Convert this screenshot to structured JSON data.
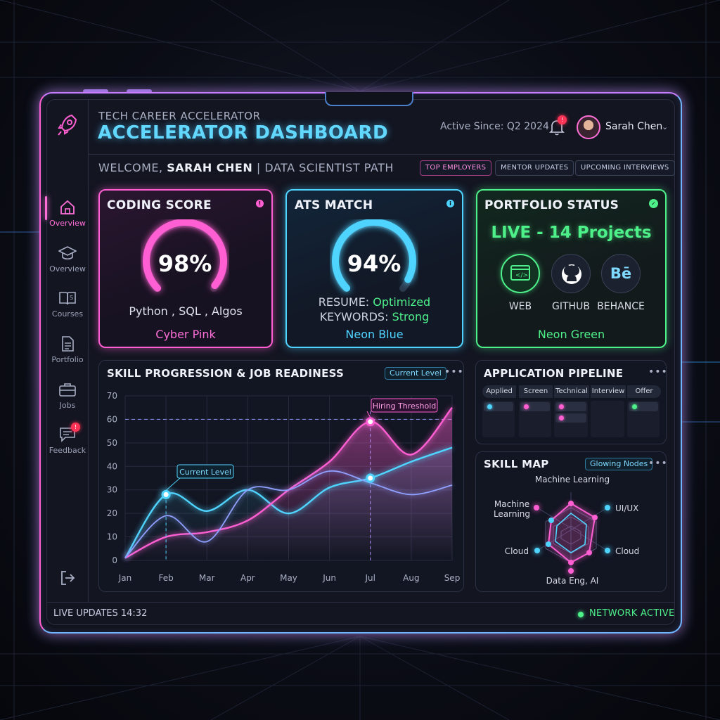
{
  "header": {
    "subtitle": "TECH CAREER ACCELERATOR",
    "title": "ACCELERATOR DASHBOARD",
    "active_since": "Active Since: Q2 2024",
    "notification_count": "!",
    "user_name": "Sarah Chen",
    "user_menu_icon": "chevron-down-icon"
  },
  "welcome": {
    "prefix": "WELCOME,",
    "name": "SARAH CHEN",
    "separator": "|",
    "path": "DATA SCIENTIST PATH"
  },
  "pills": [
    "TOP EMPLOYERS",
    "MENTOR UPDATES",
    "UPCOMING INTERVIEWS"
  ],
  "sidebar": {
    "logo_icon": "rocket-icon",
    "items": [
      {
        "label": "Overview",
        "icon": "home-icon",
        "active": true
      },
      {
        "label": "Overview",
        "icon": "graduation-cap-icon",
        "active": false
      },
      {
        "label": "Courses",
        "icon": "book-icon",
        "active": false
      },
      {
        "label": "Portfolio",
        "icon": "document-icon",
        "active": false
      },
      {
        "label": "Jobs",
        "icon": "briefcase-icon",
        "active": false
      },
      {
        "label": "Feedback",
        "icon": "chat-icon",
        "active": false,
        "badge": "!"
      }
    ],
    "logout_icon": "logout-icon"
  },
  "cards": {
    "coding": {
      "title": "CODING SCORE",
      "value": "98%",
      "progress": 0.98,
      "skills": "Python , SQL , Algos",
      "theme_name": "Cyber Pink",
      "color": "#ff5fd2"
    },
    "ats": {
      "title": "ATS MATCH",
      "value": "94%",
      "progress": 0.94,
      "resume_label": "RESUME:",
      "resume_value": "Optimized",
      "keywords_label": "KEYWORDS:",
      "keywords_value": "Strong",
      "theme_name": "Neon Blue",
      "color": "#4fd4ff"
    },
    "portfolio": {
      "title": "PORTFOLIO STATUS",
      "status": "LIVE - 14 Projects",
      "links": [
        {
          "label": "WEB",
          "icon": "browser-code-icon"
        },
        {
          "label": "GITHUB",
          "icon": "github-icon"
        },
        {
          "label": "BEHANCE",
          "icon": "behance-icon",
          "glyph": "Bē"
        }
      ],
      "theme_name": "Neon Green",
      "color": "#4ef08a"
    }
  },
  "chart_card": {
    "title": "SKILL PROGRESSION & JOB READINESS",
    "tag": "Current Level",
    "menu": "•••"
  },
  "chart_data": {
    "type": "line",
    "x": [
      "Jan",
      "Feb",
      "Mar",
      "Apr",
      "May",
      "Jun",
      "Jul",
      "Aug",
      "Sep"
    ],
    "ylim": [
      0,
      70
    ],
    "yticks": [
      0,
      10,
      20,
      30,
      40,
      50,
      60,
      70
    ],
    "threshold": 60,
    "series": [
      {
        "color": "#4fd4ff",
        "values": [
          1,
          28,
          21,
          30,
          20,
          31,
          35,
          42,
          48
        ]
      },
      {
        "color": "#ff5fd2",
        "values": [
          1,
          10,
          12,
          17,
          30,
          42,
          59,
          45,
          65
        ]
      },
      {
        "color": "#8fa0ff",
        "values": [
          1,
          19,
          8,
          30,
          30,
          38,
          33,
          28,
          32
        ]
      }
    ],
    "annotations": [
      {
        "text": "Current Level",
        "x": "Feb",
        "y": 28
      },
      {
        "text": "Hiring Threshold",
        "x": "Jul",
        "y": 59
      }
    ]
  },
  "pipeline": {
    "title": "APPLICATION PIPELINE",
    "menu": "•••",
    "stages": [
      "Applied",
      "Screen",
      "Technical",
      "Interview",
      "Offer"
    ]
  },
  "skill_map": {
    "title": "SKILL MAP",
    "tag": "Glowing Nodes",
    "menu": "•••",
    "labels": [
      "Machine Learning",
      "Machine\nLearning",
      "UI/UX",
      "Cloud",
      "Cloud",
      "Data Eng, AI"
    ]
  },
  "footer": {
    "live_updates": "LIVE UPDATES 14:32",
    "network": "NETWORK ACTIVE"
  }
}
